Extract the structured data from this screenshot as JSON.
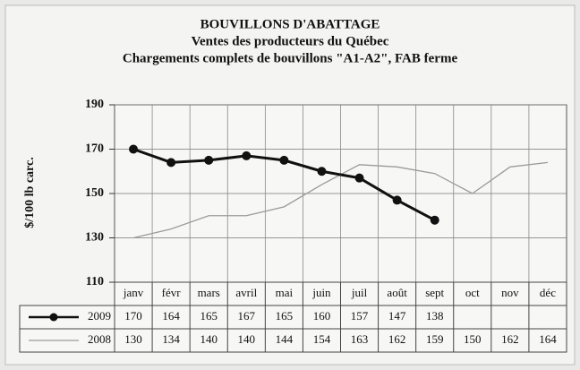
{
  "chart_data": {
    "type": "line",
    "title": "BOUVILLONS D'ABATTAGE",
    "subtitle": "Ventes des producteurs du Québec",
    "subtitle2": "Chargements complets de bouvillons \"A1-A2\", FAB ferme",
    "y_label": "$/100 lb carc.",
    "categories": [
      "janv",
      "févr",
      "mars",
      "avril",
      "mai",
      "juin",
      "juil",
      "août",
      "sept",
      "oct",
      "nov",
      "déc"
    ],
    "series": [
      {
        "name": "2009",
        "color": "#111111",
        "marker": true,
        "values": [
          170,
          164,
          165,
          167,
          165,
          160,
          157,
          147,
          138,
          null,
          null,
          null
        ]
      },
      {
        "name": "2008",
        "color": "#9a9a9a",
        "marker": false,
        "values": [
          130,
          134,
          140,
          140,
          144,
          154,
          163,
          162,
          159,
          150,
          162,
          164
        ]
      }
    ],
    "ylim": [
      110,
      190
    ],
    "yticks": [
      110,
      130,
      150,
      170,
      190
    ],
    "grid": true
  }
}
